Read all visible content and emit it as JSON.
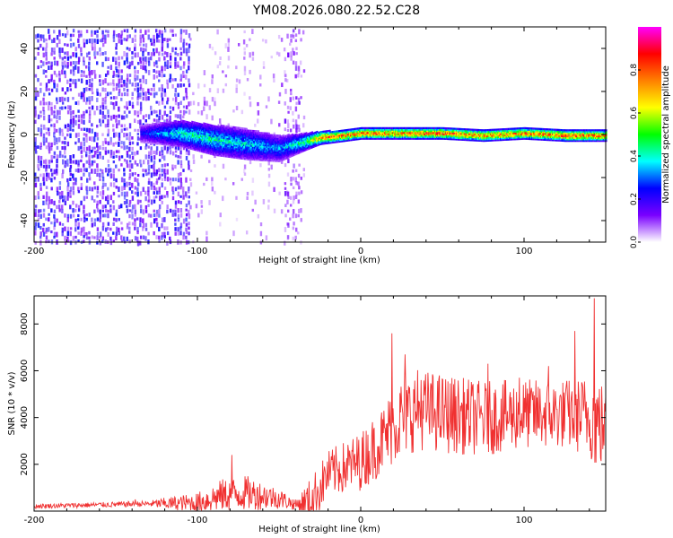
{
  "chart_data": [
    {
      "type": "heatmap",
      "title": "YM08.2026.080.22.52.C28",
      "xlabel": "Height of straight line (km)",
      "ylabel": "Frequency (Hz)",
      "xlim": [
        -200,
        150
      ],
      "ylim": [
        -50,
        50
      ],
      "x_ticks": [
        -200,
        -100,
        0,
        100
      ],
      "y_ticks": [
        -40,
        -20,
        0,
        20,
        40
      ],
      "colorbar": {
        "label": "Normalized spectral amplitude",
        "range": [
          0,
          1
        ],
        "ticks": [
          "0.0",
          "0.2",
          "0.4",
          "0.6",
          "0.8"
        ],
        "colors": [
          "#ffffff",
          "#7a00ff",
          "#0000ff",
          "#00ffff",
          "#00ff00",
          "#ffff00",
          "#ff8000",
          "#ff0000",
          "#ff00ff"
        ]
      },
      "signal_track": {
        "x": [
          -135,
          -110,
          -90,
          -70,
          -50,
          -35,
          -25,
          -10,
          0,
          25,
          50,
          75,
          100,
          125,
          150
        ],
        "center_hz": [
          1,
          1,
          -2,
          -4,
          -6,
          -3,
          -1,
          0,
          1,
          1,
          1,
          0,
          1,
          0,
          0
        ],
        "halfwidth_hz": [
          4,
          6,
          7,
          7,
          6,
          4,
          3,
          2.5,
          2.5,
          2.5,
          2.5,
          2.5,
          2.5,
          2.5,
          2.5
        ],
        "peak_amplitude": [
          0.25,
          0.45,
          0.45,
          0.4,
          0.35,
          0.5,
          0.8,
          0.85,
          0.85,
          0.85,
          0.9,
          0.85,
          0.85,
          0.9,
          0.85
        ]
      },
      "noise_regions": [
        {
          "x_from": -200,
          "x_to": -105,
          "density": "high",
          "amplitude": 0.2
        },
        {
          "x_from": -105,
          "x_to": -35,
          "density": "low",
          "amplitude": 0.08
        },
        {
          "x_from": -47,
          "x_to": -38,
          "density": "medium",
          "amplitude": 0.12
        }
      ]
    },
    {
      "type": "line",
      "title": "",
      "xlabel": "Height of straight line (km)",
      "ylabel": "SNR (10 * v/v)",
      "xlim": [
        -200,
        150
      ],
      "ylim": [
        0,
        9200
      ],
      "x_ticks": [
        -200,
        -100,
        0,
        100
      ],
      "y_ticks": [
        2000,
        4000,
        6000,
        8000
      ],
      "series": [
        {
          "name": "SNR",
          "color": "#f03030",
          "envelope": {
            "x": [
              -200,
              -130,
              -120,
              -100,
              -85,
              -70,
              -50,
              -40,
              -30,
              -20,
              0,
              15,
              20,
              25,
              35,
              50,
              75,
              100,
              125,
              140,
              145,
              150
            ],
            "base": [
              200,
              300,
              300,
              300,
              600,
              700,
              500,
              250,
              300,
              1500,
              2000,
              3000,
              3500,
              3800,
              4200,
              4000,
              3800,
              4000,
              4000,
              3900,
              3500,
              3500
            ],
            "amp": [
              200,
              250,
              500,
              900,
              1400,
              1500,
              900,
              450,
              2200,
              2000,
              2500,
              3000,
              3500,
              3500,
              3500,
              3400,
              3200,
              3000,
              3000,
              3500,
              4500,
              3000
            ]
          },
          "spikes": [
            {
              "x": 19,
              "y": 7600
            },
            {
              "x": 27,
              "y": 6700
            },
            {
              "x": 37,
              "y": 5600
            },
            {
              "x": 48,
              "y": 5800
            },
            {
              "x": 78,
              "y": 6300
            },
            {
              "x": 97,
              "y": 5700
            },
            {
              "x": 115,
              "y": 6200
            },
            {
              "x": 131,
              "y": 7700
            },
            {
              "x": 143,
              "y": 9100
            },
            {
              "x": -79,
              "y": 2400
            },
            {
              "x": -138,
              "y": 500
            }
          ]
        }
      ]
    }
  ]
}
